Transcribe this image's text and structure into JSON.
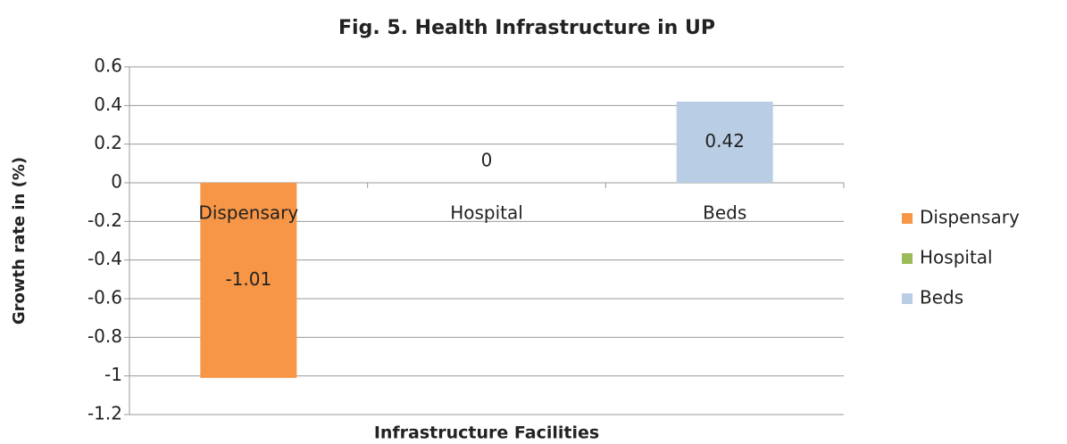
{
  "chart_data": {
    "type": "bar",
    "title": "Fig. 5. Health Infrastructure in UP",
    "xlabel": "Infrastructure Facilities",
    "ylabel": "Growth rate in (%)",
    "categories": [
      "Dispensary",
      "Hospital",
      "Beds"
    ],
    "series": [
      {
        "name": "Dispensary",
        "color": "#f79646",
        "values": [
          -1.01,
          null,
          null
        ]
      },
      {
        "name": "Hospital",
        "color": "#9bbb59",
        "values": [
          null,
          0,
          null
        ]
      },
      {
        "name": "Beds",
        "color": "#b9cde5",
        "values": [
          null,
          null,
          0.42
        ]
      }
    ],
    "ylim": [
      -1.2,
      0.6
    ],
    "yticks": [
      -1.2,
      -1,
      -0.8,
      -0.6,
      -0.4,
      -0.2,
      0,
      0.2,
      0.4,
      0.6
    ],
    "grid": true,
    "legend": "right"
  }
}
